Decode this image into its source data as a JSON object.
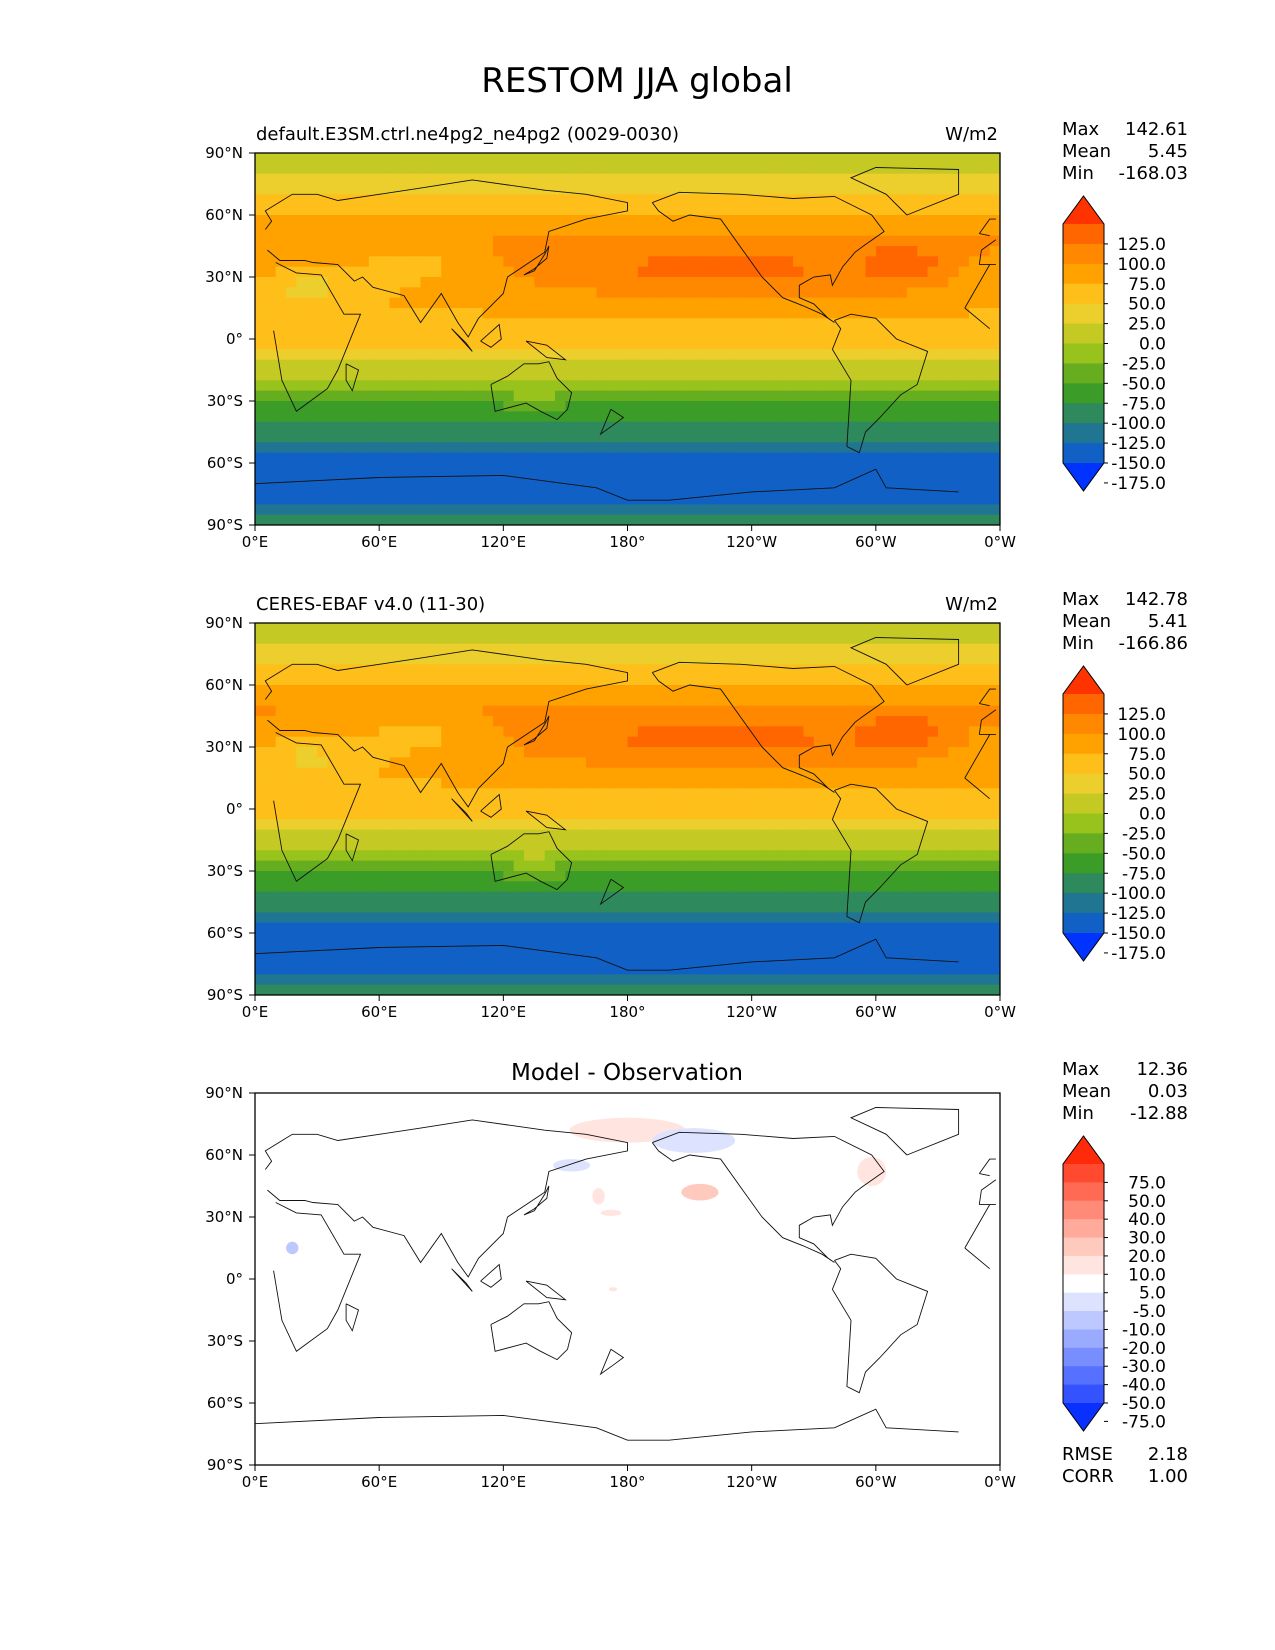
{
  "title": "RESTOM JJA global",
  "chart_data": [
    {
      "type": "heatmap",
      "title": "default.E3SM.ctrl.ne4pg2_ne4pg2 (0029-0030)",
      "units": "W/m2",
      "stats": {
        "max_label": "Max",
        "max": "142.61",
        "mean_label": "Mean",
        "mean": "5.45",
        "min_label": "Min",
        "min": "-168.03"
      },
      "xticks": [
        "0°E",
        "60°E",
        "120°E",
        "180°",
        "120°W",
        "60°W",
        "0°W"
      ],
      "yticks": [
        "90°N",
        "60°N",
        "30°N",
        "0°",
        "30°S",
        "60°S",
        "90°S"
      ],
      "xlim": [
        0,
        360
      ],
      "ylim": [
        -90,
        90
      ],
      "colorbar": {
        "labels": [
          "125.0",
          "100.0",
          "75.0",
          "50.0",
          "25.0",
          "0.0",
          "-25.0",
          "-50.0",
          "-75.0",
          "-100.0",
          "-125.0",
          "-150.0",
          "-175.0"
        ],
        "colors": [
          "#ff3300",
          "#ff6600",
          "#ff8800",
          "#ffa200",
          "#ffbf1a",
          "#eccf2c",
          "#c5c924",
          "#98c21c",
          "#66ad1f",
          "#3c9c28",
          "#2e8a5c",
          "#1f7592",
          "#1160c6",
          "#0033ff"
        ]
      },
      "zonal_profile": {
        "lat": [
          90,
          75,
          60,
          45,
          30,
          15,
          0,
          -15,
          -30,
          -45,
          -60,
          -75,
          -90
        ],
        "value": [
          -20,
          10,
          55,
          85,
          80,
          55,
          35,
          -15,
          -70,
          -115,
          -160,
          -170,
          -115
        ]
      }
    },
    {
      "type": "heatmap",
      "title": "CERES-EBAF v4.0 (11-30)",
      "units": "W/m2",
      "stats": {
        "max_label": "Max",
        "max": "142.78",
        "mean_label": "Mean",
        "mean": "5.41",
        "min_label": "Min",
        "min": "-166.86"
      },
      "xticks": [
        "0°E",
        "60°E",
        "120°E",
        "180°",
        "120°W",
        "60°W",
        "0°W"
      ],
      "yticks": [
        "90°N",
        "60°N",
        "30°N",
        "0°",
        "30°S",
        "60°S",
        "90°S"
      ],
      "xlim": [
        0,
        360
      ],
      "ylim": [
        -90,
        90
      ],
      "colorbar": {
        "labels": [
          "125.0",
          "100.0",
          "75.0",
          "50.0",
          "25.0",
          "0.0",
          "-25.0",
          "-50.0",
          "-75.0",
          "-100.0",
          "-125.0",
          "-150.0",
          "-175.0"
        ],
        "colors": [
          "#ff3300",
          "#ff6600",
          "#ff8800",
          "#ffa200",
          "#ffbf1a",
          "#eccf2c",
          "#c5c924",
          "#98c21c",
          "#66ad1f",
          "#3c9c28",
          "#2e8a5c",
          "#1f7592",
          "#1160c6",
          "#0033ff"
        ]
      },
      "zonal_profile": {
        "lat": [
          90,
          75,
          60,
          45,
          30,
          15,
          0,
          -15,
          -30,
          -45,
          -60,
          -75,
          -90
        ],
        "value": [
          -20,
          10,
          55,
          85,
          80,
          55,
          35,
          -15,
          -70,
          -115,
          -160,
          -170,
          -115
        ]
      }
    },
    {
      "type": "heatmap",
      "title": "Model - Observation",
      "units": "",
      "stats": {
        "max_label": "Max",
        "max": "12.36",
        "mean_label": "Mean",
        "mean": "0.03",
        "min_label": "Min",
        "min": "-12.88"
      },
      "xticks": [
        "0°E",
        "60°E",
        "120°E",
        "180°",
        "120°W",
        "60°W",
        "0°W"
      ],
      "yticks": [
        "90°N",
        "60°N",
        "30°N",
        "0°",
        "30°S",
        "60°S",
        "90°S"
      ],
      "xlim": [
        0,
        360
      ],
      "ylim": [
        -90,
        90
      ],
      "colorbar": {
        "labels": [
          "75.0",
          "50.0",
          "40.0",
          "30.0",
          "20.0",
          "10.0",
          "5.0",
          "-5.0",
          "-10.0",
          "-20.0",
          "-30.0",
          "-40.0",
          "-50.0",
          "-75.0"
        ],
        "colors": [
          "#ff2a0a",
          "#ff4a30",
          "#ff6a55",
          "#ff8a78",
          "#ffaa9b",
          "#ffcabe",
          "#ffe4df",
          "#ffffff",
          "#dde3ff",
          "#bcc8ff",
          "#9aabff",
          "#788eff",
          "#5671ff",
          "#3453ff",
          "#0a30ff"
        ]
      },
      "summary": {
        "rmse_label": "RMSE",
        "rmse": "2.18",
        "corr_label": "CORR",
        "corr": "1.00"
      }
    }
  ]
}
